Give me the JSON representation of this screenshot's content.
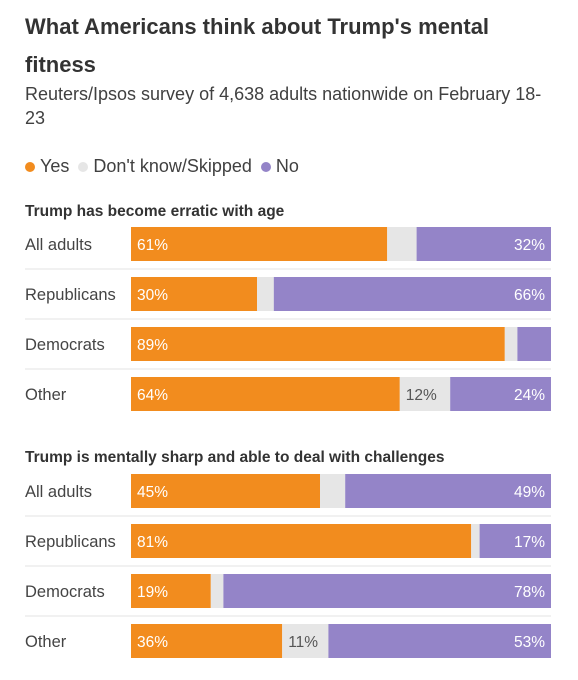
{
  "title": "What Americans think about Trump's mental fitness",
  "subtitle": "Reuters/Ipsos survey of 4,638 adults nationwide on February 18-23",
  "legend": [
    {
      "label": "Yes",
      "color": "#f28c1e"
    },
    {
      "label": "Don't know/Skipped",
      "color": "#e6e6e6"
    },
    {
      "label": "No",
      "color": "#9484c8"
    }
  ],
  "chart_data": [
    {
      "type": "bar",
      "stacked": true,
      "orientation": "horizontal",
      "title": "Trump has become erratic with age",
      "categories": [
        "All adults",
        "Republicans",
        "Democrats",
        "Other"
      ],
      "series": [
        {
          "name": "Yes",
          "values": [
            61,
            30,
            89,
            64
          ],
          "labels": [
            "61%",
            "30%",
            "89%",
            "64%"
          ]
        },
        {
          "name": "Don't know/Skipped",
          "values": [
            7,
            4,
            3,
            12
          ],
          "labels": [
            "",
            "",
            "",
            "12%"
          ]
        },
        {
          "name": "No",
          "values": [
            32,
            66,
            8,
            24
          ],
          "labels": [
            "32%",
            "66%",
            "",
            "24%"
          ]
        }
      ],
      "xlim": [
        0,
        100
      ]
    },
    {
      "type": "bar",
      "stacked": true,
      "orientation": "horizontal",
      "title": "Trump is mentally sharp and able to deal with challenges",
      "categories": [
        "All adults",
        "Republicans",
        "Democrats",
        "Other"
      ],
      "series": [
        {
          "name": "Yes",
          "values": [
            45,
            81,
            19,
            36
          ],
          "labels": [
            "45%",
            "81%",
            "19%",
            "36%"
          ]
        },
        {
          "name": "Don't know/Skipped",
          "values": [
            6,
            2,
            3,
            11
          ],
          "labels": [
            "",
            "",
            "",
            "11%"
          ]
        },
        {
          "name": "No",
          "values": [
            49,
            17,
            78,
            53
          ],
          "labels": [
            "49%",
            "17%",
            "78%",
            "53%"
          ]
        }
      ],
      "xlim": [
        0,
        100
      ]
    }
  ]
}
